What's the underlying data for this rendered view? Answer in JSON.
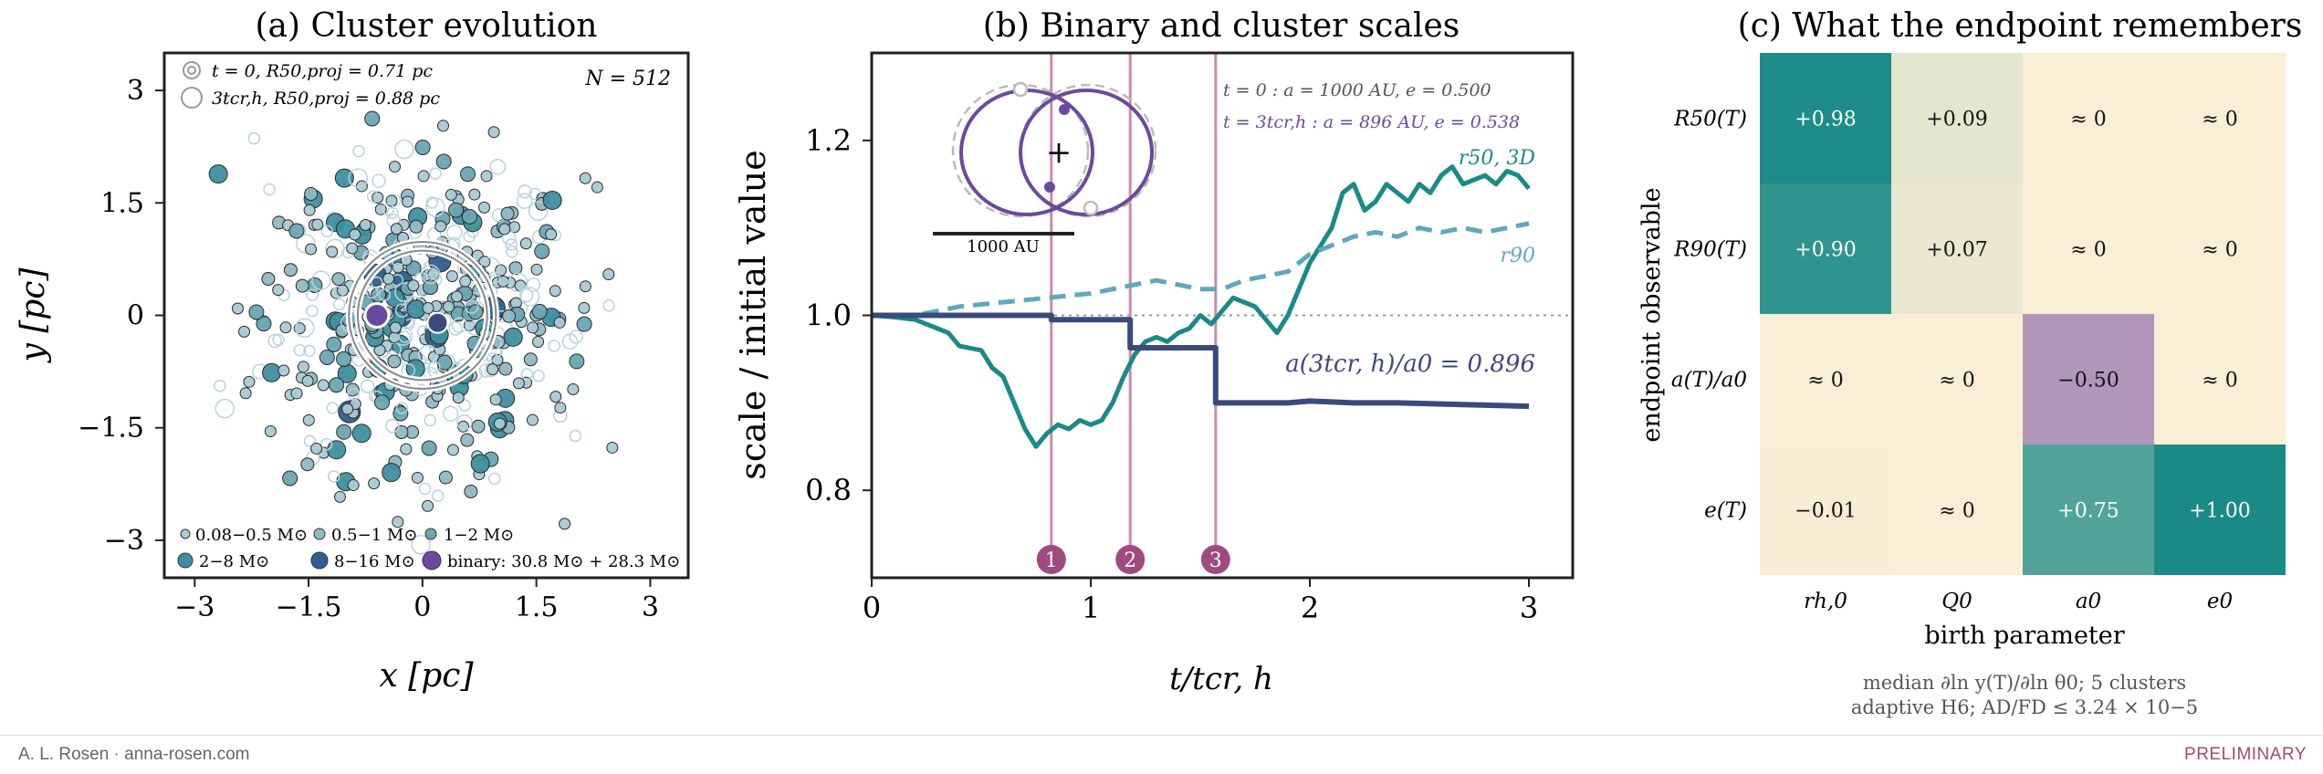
{
  "colors": {
    "teal": "#1a8a86",
    "navy": "#3b4a7c",
    "lightblue": "#5fa8bd",
    "purple": "#6b4a9e",
    "magenta": "#a04a80",
    "cream": "#f9efd6"
  },
  "chart_data": [
    {
      "type": "scatter",
      "title": "(a) Cluster evolution",
      "xlabel": "x [pc]",
      "ylabel": "y [pc]",
      "xlim": [
        -3.4,
        3.5
      ],
      "ylim": [
        -3.5,
        3.5
      ],
      "xticks": [
        -3,
        -1.5,
        0,
        1.5,
        3
      ],
      "yticks": [
        -3,
        -1.5,
        0,
        1.5,
        3
      ],
      "xtick_labels": [
        "−3",
        "−1.5",
        "0",
        "1.5",
        "3"
      ],
      "ytick_labels": [
        "−3",
        "−1.5",
        "0",
        "1.5",
        "3"
      ],
      "annotation": "N = 512",
      "legend_top": [
        "t = 0,  R50,proj = 0.71 pc",
        "3tcr,h,  R50,proj = 0.88 pc"
      ],
      "legend_bottom": [
        "0.08−0.5 M⊙",
        "0.5−1 M⊙",
        "1−2 M⊙",
        "2−8 M⊙",
        "8−16 M⊙",
        "binary: 30.8 M⊙ + 28.3 M⊙"
      ],
      "circles_pc": {
        "t0_r50": 0.71,
        "t3_r50": 0.88
      },
      "binary_position": [
        -0.6,
        0.0
      ],
      "n_stars": 512
    },
    {
      "type": "line",
      "title": "(b) Binary and cluster scales",
      "xlabel": "t/tcr, h",
      "ylabel": "scale / initial value",
      "xlim": [
        0,
        3.2
      ],
      "ylim": [
        0.7,
        1.3
      ],
      "xticks": [
        0,
        1,
        2,
        3
      ],
      "yticks": [
        0.8,
        1.0,
        1.2
      ],
      "xtick_labels": [
        "0",
        "1",
        "2",
        "3"
      ],
      "ytick_labels": [
        "0.8",
        "1.0",
        "1.2"
      ],
      "events": [
        {
          "x": 0.82,
          "label": "1"
        },
        {
          "x": 1.18,
          "label": "2"
        },
        {
          "x": 1.57,
          "label": "3"
        }
      ],
      "series": [
        {
          "name": "r50, 3D",
          "x": [
            0,
            0.1,
            0.2,
            0.3,
            0.35,
            0.4,
            0.5,
            0.55,
            0.6,
            0.65,
            0.7,
            0.75,
            0.8,
            0.85,
            0.9,
            0.95,
            1.0,
            1.05,
            1.1,
            1.15,
            1.2,
            1.25,
            1.3,
            1.35,
            1.4,
            1.45,
            1.5,
            1.55,
            1.6,
            1.65,
            1.7,
            1.75,
            1.8,
            1.85,
            1.9,
            1.95,
            2.0,
            2.05,
            2.1,
            2.15,
            2.2,
            2.25,
            2.3,
            2.35,
            2.4,
            2.45,
            2.5,
            2.55,
            2.6,
            2.65,
            2.7,
            2.75,
            2.8,
            2.85,
            2.9,
            2.95,
            3.0
          ],
          "values": [
            1.0,
            0.998,
            0.995,
            0.985,
            0.98,
            0.965,
            0.96,
            0.94,
            0.93,
            0.9,
            0.87,
            0.85,
            0.865,
            0.875,
            0.87,
            0.88,
            0.875,
            0.88,
            0.9,
            0.93,
            0.955,
            0.97,
            0.975,
            0.97,
            0.98,
            0.985,
            1.0,
            0.99,
            1.005,
            1.02,
            1.015,
            1.01,
            0.995,
            0.98,
            1.0,
            1.03,
            1.06,
            1.08,
            1.1,
            1.14,
            1.15,
            1.12,
            1.13,
            1.15,
            1.14,
            1.13,
            1.15,
            1.14,
            1.16,
            1.17,
            1.15,
            1.155,
            1.16,
            1.15,
            1.165,
            1.16,
            1.145
          ]
        },
        {
          "name": "r90",
          "x": [
            0,
            0.2,
            0.4,
            0.6,
            0.8,
            1.0,
            1.1,
            1.2,
            1.3,
            1.4,
            1.5,
            1.6,
            1.7,
            1.8,
            1.9,
            2.0,
            2.1,
            2.2,
            2.3,
            2.4,
            2.5,
            2.6,
            2.7,
            2.8,
            2.9,
            3.0
          ],
          "values": [
            1.0,
            1.0,
            1.01,
            1.015,
            1.02,
            1.025,
            1.03,
            1.035,
            1.04,
            1.035,
            1.03,
            1.03,
            1.04,
            1.045,
            1.05,
            1.07,
            1.08,
            1.09,
            1.095,
            1.09,
            1.1,
            1.095,
            1.1,
            1.095,
            1.1,
            1.105
          ]
        },
        {
          "name": "a(3tcr,h)/a0 = 0.896",
          "x": [
            0,
            0.82,
            0.82,
            1.18,
            1.18,
            1.57,
            1.57,
            1.9,
            2.0,
            2.2,
            2.4,
            2.7,
            3.0
          ],
          "values": [
            1.0,
            1.0,
            0.995,
            0.995,
            0.963,
            0.963,
            0.9,
            0.9,
            0.902,
            0.9,
            0.9,
            0.898,
            0.896
          ]
        }
      ],
      "annotations": {
        "binary_t0": "t = 0 :  a = 1000 AU,  e = 0.500",
        "binary_t3": "t = 3tcr,h :  a = 896 AU,  e = 0.538",
        "scalebar": "1000 AU",
        "r50_label": "r50, 3D",
        "r90_label": "r90",
        "a_label": "a(3tcr, h)/a0 = 0.896"
      }
    },
    {
      "type": "heatmap",
      "title": "(c) What the endpoint remembers",
      "xlabel": "birth parameter",
      "ylabel": "endpoint observable",
      "columns": [
        "rh,0",
        "Q0",
        "a0",
        "e0"
      ],
      "rows": [
        "R50(T)",
        "R90(T)",
        "a(T)/a0",
        "e(T)"
      ],
      "values": [
        [
          0.98,
          0.09,
          0,
          0
        ],
        [
          0.9,
          0.07,
          0,
          0
        ],
        [
          0,
          0,
          -0.5,
          0
        ],
        [
          -0.01,
          0,
          0.75,
          1.0
        ]
      ],
      "labels": [
        [
          "+0.98",
          "+0.09",
          "≈ 0",
          "≈ 0"
        ],
        [
          "+0.90",
          "+0.07",
          "≈ 0",
          "≈ 0"
        ],
        [
          "≈ 0",
          "≈ 0",
          "−0.50",
          "≈ 0"
        ],
        [
          "−0.01",
          "≈ 0",
          "+0.75",
          "+1.00"
        ]
      ],
      "caption_line1": "median ∂ln y(T)/∂ln θ0; 5 clusters",
      "caption_line2": "adaptive H6; AD/FD ≤ 3.24 × 10−5"
    }
  ],
  "footer": {
    "author": "A. L. Rosen · anna-rosen.com",
    "status": "PRELIMINARY"
  }
}
